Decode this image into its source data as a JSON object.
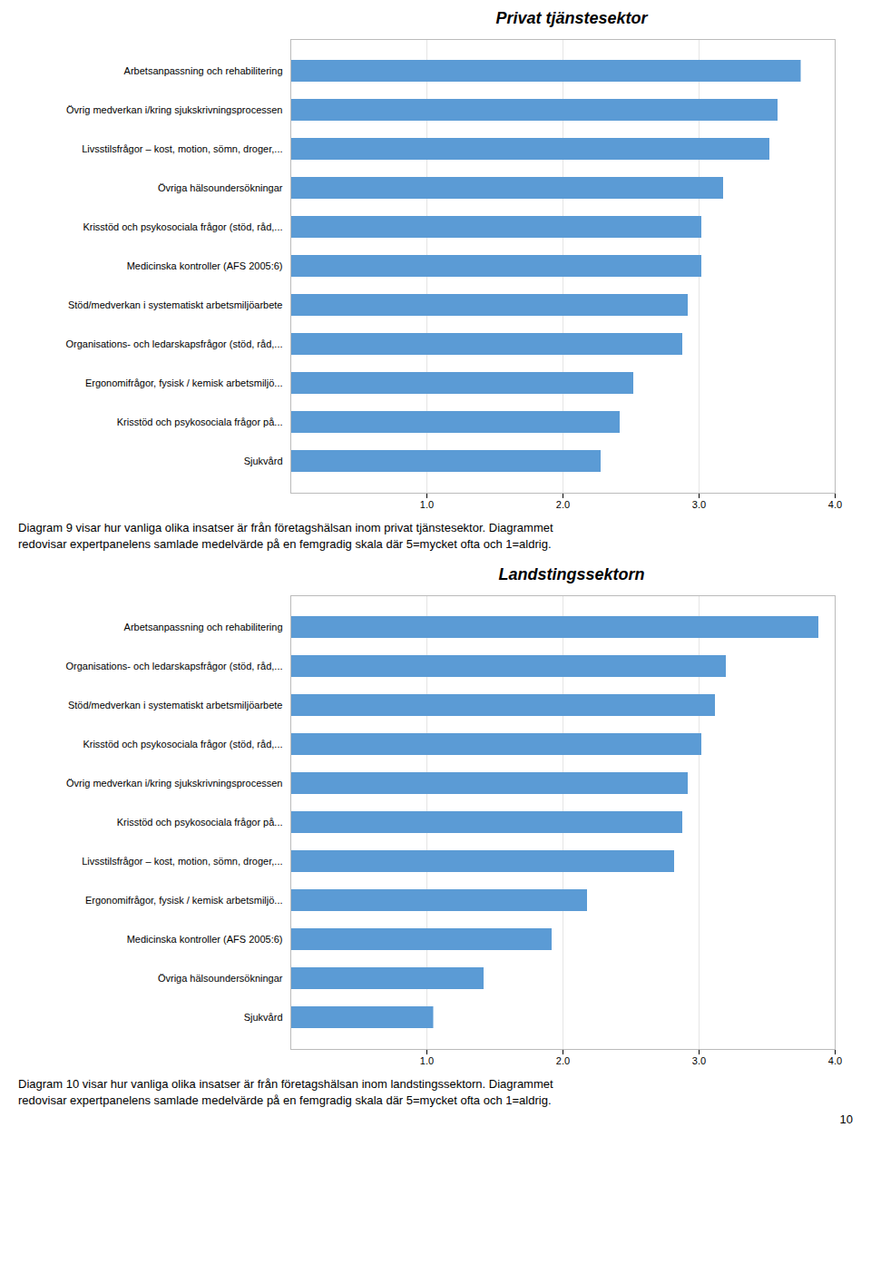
{
  "chart_data": [
    {
      "type": "bar",
      "orientation": "horizontal",
      "title": "Privat tjänstesektor",
      "categories": [
        "Arbetsanpassning och rehabilitering",
        "Övrig medverkan i/kring sjukskrivningsprocessen",
        "Livsstilsfrågor – kost, motion, sömn, droger,...",
        "Övriga hälsoundersökningar",
        "Krisstöd och psykosociala frågor (stöd, råd,...",
        "Medicinska kontroller (AFS 2005:6)",
        "Stöd/medverkan i systematiskt arbetsmiljöarbete",
        "Organisations- och ledarskapsfrågor (stöd, råd,...",
        "Ergonomifrågor, fysisk / kemisk arbetsmiljö...",
        "Krisstöd och psykosociala frågor på...",
        "Sjukvård"
      ],
      "values": [
        3.75,
        3.58,
        3.52,
        3.18,
        3.02,
        3.02,
        2.92,
        2.88,
        2.52,
        2.42,
        2.28
      ],
      "color": "#5B9BD5",
      "xlim": [
        0,
        4
      ],
      "xticks": [
        1,
        2,
        3,
        4
      ],
      "grid": true,
      "caption": [
        "Diagram 9 visar hur vanliga olika insatser är från företagshälsan inom privat tjänstesektor. Diagrammet",
        "redovisar expertpanelens samlade medelvärde på en femgradig skala där 5=mycket ofta och 1=aldrig."
      ]
    },
    {
      "type": "bar",
      "orientation": "horizontal",
      "title": "Landstingssektorn",
      "categories": [
        "Arbetsanpassning och rehabilitering",
        "Organisations- och ledarskapsfrågor (stöd, råd,...",
        "Stöd/medverkan i systematiskt arbetsmiljöarbete",
        "Krisstöd och psykosociala frågor (stöd, råd,...",
        "Övrig medverkan i/kring sjukskrivningsprocessen",
        "Krisstöd och psykosociala frågor på...",
        "Livsstilsfrågor – kost, motion, sömn, droger,...",
        "Ergonomifrågor, fysisk / kemisk arbetsmiljö...",
        "Medicinska kontroller (AFS 2005:6)",
        "Övriga hälsoundersökningar",
        "Sjukvård"
      ],
      "values": [
        3.88,
        3.2,
        3.12,
        3.02,
        2.92,
        2.88,
        2.82,
        2.18,
        1.92,
        1.42,
        1.05
      ],
      "color": "#5B9BD5",
      "xlim": [
        0,
        4
      ],
      "xticks": [
        1,
        2,
        3,
        4
      ],
      "grid": true,
      "caption": [
        "Diagram 10 visar hur vanliga olika insatser är från företagshälsan inom landstingssektorn. Diagrammet",
        "redovisar expertpanelens samlade medelvärde på en femgradig skala där 5=mycket ofta och 1=aldrig."
      ],
      "annotations": [
        "10"
      ]
    }
  ]
}
